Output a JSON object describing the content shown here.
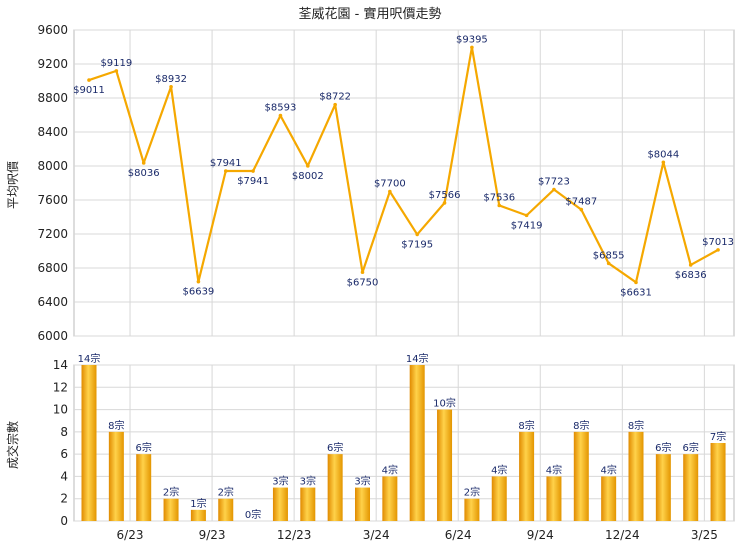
{
  "chart_data": [
    {
      "type": "line",
      "title": "荃威花園 - 實用呎價走勢",
      "ylabel": "平均呎價",
      "ylim": [
        6000,
        9600
      ],
      "yticks": [
        6000,
        6400,
        6800,
        7200,
        7600,
        8000,
        8400,
        8800,
        9200,
        9600
      ],
      "series": [
        {
          "values": [
            9011,
            9119,
            8036,
            8932,
            6639,
            7941,
            7941,
            8593,
            8002,
            8722,
            6750,
            7700,
            7195,
            7566,
            9395,
            7536,
            7419,
            7723,
            7487,
            6855,
            6631,
            8044,
            6836,
            7013
          ],
          "labels": [
            "$9011",
            "$9119",
            "$8036",
            "$8932",
            "$6639",
            "$7941",
            "$7941",
            "$8593",
            "$8002",
            "$8722",
            "$6750",
            "$7700",
            "$7195",
            "$7566",
            "$9395",
            "$7536",
            "$7419",
            "$7723",
            "$7487",
            "$6855",
            "$6631",
            "$8044",
            "$6836",
            "$7013"
          ]
        }
      ],
      "line_color": "#f5a800",
      "grid": true
    },
    {
      "type": "bar",
      "ylabel": "成交宗數",
      "ylim": [
        0,
        14
      ],
      "yticks": [
        0,
        2,
        4,
        6,
        8,
        10,
        12,
        14
      ],
      "values": [
        14,
        8,
        6,
        2,
        1,
        2,
        0,
        3,
        3,
        6,
        3,
        4,
        14,
        10,
        2,
        4,
        8,
        4,
        8,
        4,
        8,
        6,
        6,
        7
      ],
      "labels": [
        "14宗",
        "8宗",
        "6宗",
        "2宗",
        "1宗",
        "2宗",
        "0宗",
        "3宗",
        "3宗",
        "6宗",
        "3宗",
        "4宗",
        "14宗",
        "10宗",
        "2宗",
        "4宗",
        "8宗",
        "4宗",
        "8宗",
        "4宗",
        "8宗",
        "6宗",
        "6宗",
        "7宗"
      ],
      "xtick_labels": [
        "6/23",
        "9/23",
        "12/23",
        "3/24",
        "6/24",
        "9/24",
        "12/24",
        "3/25"
      ],
      "xtick_positions": [
        2,
        5,
        8,
        11,
        14,
        17,
        20,
        23
      ],
      "bar_color": "#f5a800",
      "grid": true
    }
  ]
}
